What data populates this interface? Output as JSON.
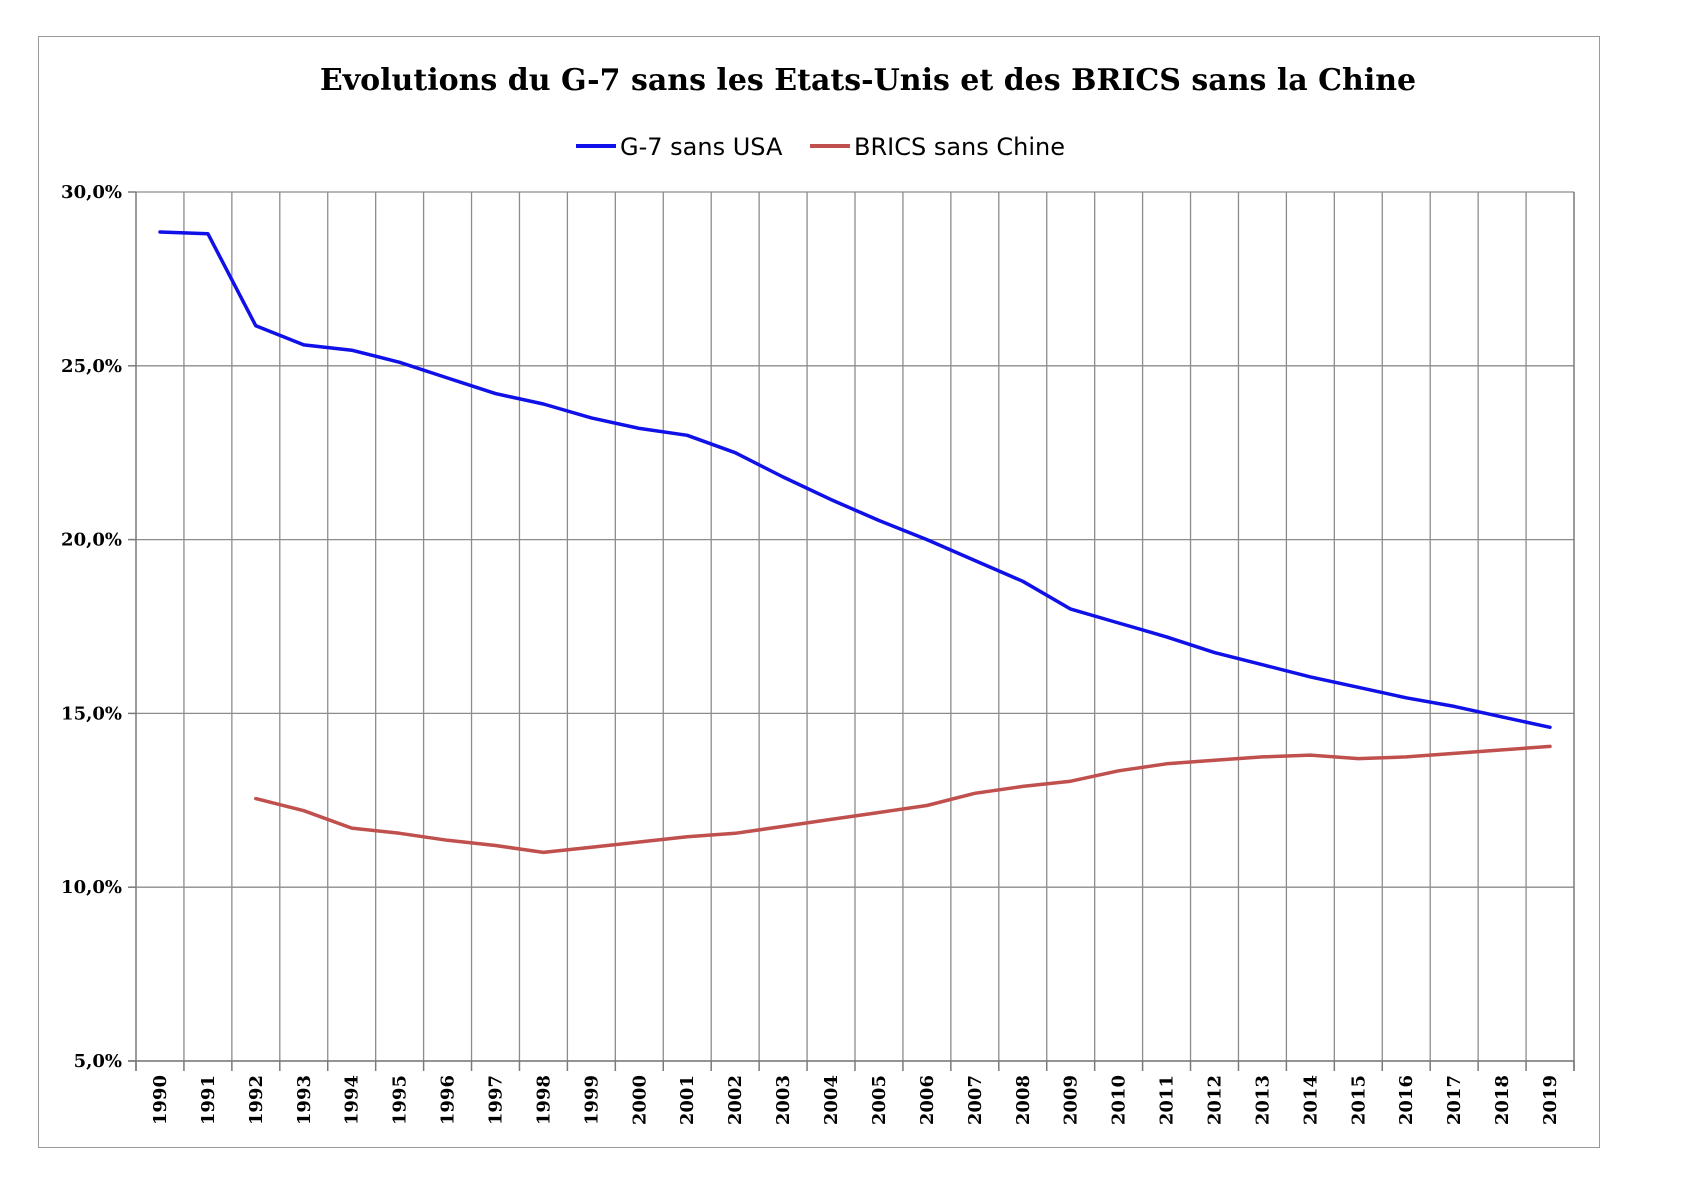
{
  "chart_data": {
    "type": "line",
    "title": "Evolutions du G-7 sans les Etats-Unis et des BRICS sans la Chine",
    "categories": [
      "1990",
      "1991",
      "1992",
      "1993",
      "1994",
      "1995",
      "1996",
      "1997",
      "1998",
      "1999",
      "2000",
      "2001",
      "2002",
      "2003",
      "2004",
      "2005",
      "2006",
      "2007",
      "2008",
      "2009",
      "2010",
      "2011",
      "2012",
      "2013",
      "2014",
      "2015",
      "2016",
      "2017",
      "2018",
      "2019"
    ],
    "y_tick_labels": [
      "5,0%",
      "10,0%",
      "15,0%",
      "20,0%",
      "25,0%",
      "30,0%"
    ],
    "y_tick_values": [
      5,
      10,
      15,
      20,
      25,
      30
    ],
    "ylim": [
      5,
      30
    ],
    "grid": true,
    "legend_position": "top",
    "series": [
      {
        "name": "G-7 sans USA",
        "color": "#1010e8",
        "values": [
          28.85,
          28.8,
          26.15,
          25.6,
          25.45,
          25.1,
          24.65,
          24.2,
          23.9,
          23.5,
          23.2,
          23.0,
          22.5,
          21.8,
          21.15,
          20.55,
          20.0,
          19.4,
          18.8,
          18.0,
          17.6,
          17.2,
          16.75,
          16.4,
          16.05,
          15.75,
          15.45,
          15.2,
          14.9,
          14.6
        ]
      },
      {
        "name": "BRICS sans Chine",
        "color": "#c0504d",
        "values": [
          null,
          null,
          12.55,
          12.2,
          11.7,
          11.55,
          11.35,
          11.2,
          11.0,
          11.15,
          11.3,
          11.45,
          11.55,
          11.75,
          11.95,
          12.15,
          12.35,
          12.7,
          12.9,
          13.05,
          13.35,
          13.55,
          13.65,
          13.75,
          13.8,
          13.7,
          13.75,
          13.85,
          13.95,
          14.05
        ]
      }
    ]
  }
}
